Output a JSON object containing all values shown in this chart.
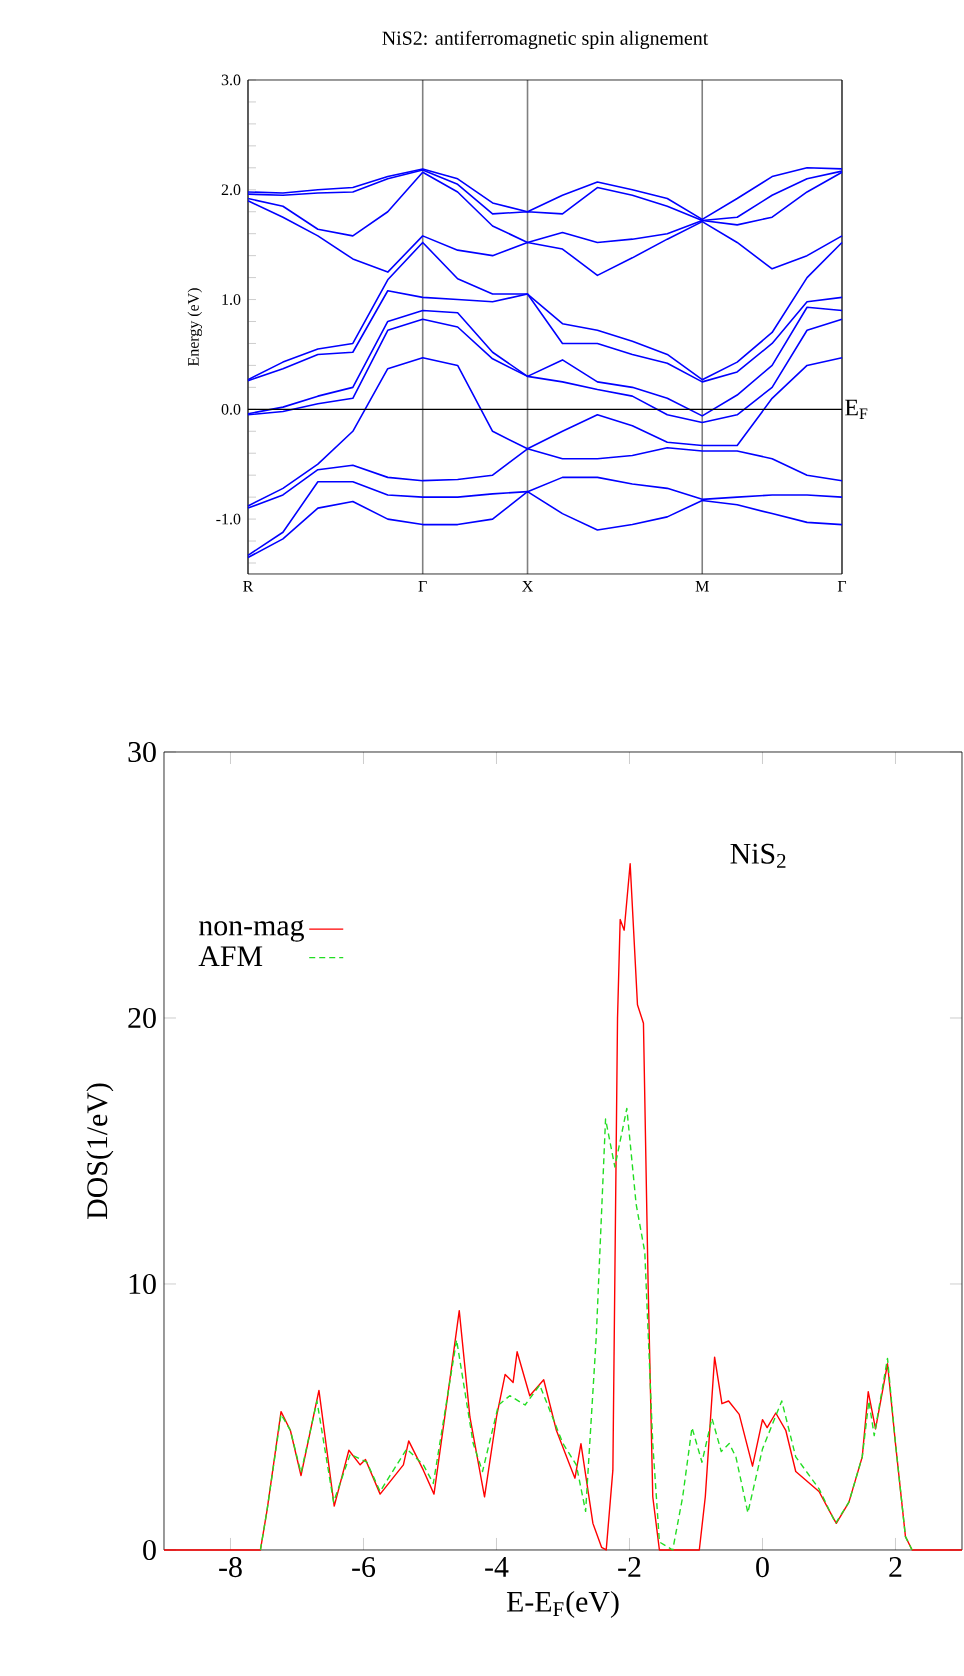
{
  "chart_data": [
    {
      "type": "line",
      "title": "NiS2: antiferromagnetic spin alignement",
      "ylabel": "Energy (eV)",
      "categories": [
        "R",
        null,
        null,
        null,
        null,
        "Γ",
        null,
        null,
        "X",
        null,
        null,
        null,
        null,
        "M",
        null,
        null,
        null,
        "Γ"
      ],
      "ylim": [
        -1.5,
        3.0
      ],
      "grid": "x",
      "yticks": [
        {
          "value": -1.4,
          "label": null
        },
        {
          "value": -1.2,
          "label": null
        },
        {
          "value": -1.0,
          "label": "-1.0"
        },
        {
          "value": -0.8,
          "label": null
        },
        {
          "value": -0.6,
          "label": null
        },
        {
          "value": -0.4,
          "label": null
        },
        {
          "value": -0.2,
          "label": null
        },
        {
          "value": 0,
          "label": "0.0"
        },
        {
          "value": 0.2,
          "label": null
        },
        {
          "value": 0.4,
          "label": null
        },
        {
          "value": 0.6,
          "label": null
        },
        {
          "value": 0.8,
          "label": null
        },
        {
          "value": 1.0,
          "label": "1.0"
        },
        {
          "value": 1.2,
          "label": null
        },
        {
          "value": 1.4,
          "label": null
        },
        {
          "value": 1.6,
          "label": null
        },
        {
          "value": 1.8,
          "label": null
        },
        {
          "value": 2.0,
          "label": "2.0"
        },
        {
          "value": 2.2,
          "label": null
        },
        {
          "value": 2.4,
          "label": null
        },
        {
          "value": 2.6,
          "label": null
        },
        {
          "value": 2.8,
          "label": null
        },
        {
          "value": 3.0,
          "label": "3.0"
        }
      ],
      "ref_lines": [
        {
          "axis": "y",
          "value": 0,
          "label": "E$_{F}$",
          "color": "#000000"
        }
      ],
      "series": [
        {
          "color": "#0000ff",
          "values": [
            -1.35,
            -1.18,
            -0.9,
            -0.84,
            -1.0,
            -1.05,
            -1.05,
            -1.0,
            -0.75,
            -0.95,
            -1.1,
            -1.05,
            -0.98,
            -0.83,
            -0.87,
            -0.95,
            -1.03,
            -1.05
          ]
        },
        {
          "color": "#0000ff",
          "values": [
            -1.33,
            -1.12,
            -0.66,
            -0.66,
            -0.78,
            -0.8,
            -0.8,
            -0.77,
            -0.75,
            -0.62,
            -0.62,
            -0.68,
            -0.72,
            -0.82,
            -0.8,
            -0.78,
            -0.78,
            -0.8
          ]
        },
        {
          "color": "#0000ff",
          "values": [
            -0.9,
            -0.78,
            -0.55,
            -0.51,
            -0.62,
            -0.65,
            -0.64,
            -0.6,
            -0.36,
            -0.45,
            -0.45,
            -0.42,
            -0.35,
            -0.38,
            -0.38,
            -0.45,
            -0.6,
            -0.65
          ]
        },
        {
          "color": "#0000ff",
          "values": [
            -0.88,
            -0.72,
            -0.5,
            -0.2,
            0.37,
            0.47,
            0.4,
            -0.2,
            -0.36,
            -0.2,
            -0.05,
            -0.15,
            -0.3,
            -0.33,
            -0.33,
            0.1,
            0.4,
            0.47
          ]
        },
        {
          "color": "#0000ff",
          "values": [
            -0.05,
            -0.02,
            0.05,
            0.1,
            0.72,
            0.82,
            0.75,
            0.46,
            0.3,
            0.25,
            0.18,
            0.12,
            -0.05,
            -0.12,
            -0.05,
            0.2,
            0.72,
            0.82
          ]
        },
        {
          "color": "#0000ff",
          "values": [
            -0.04,
            0.02,
            0.12,
            0.2,
            0.8,
            0.9,
            0.88,
            0.52,
            0.3,
            0.45,
            0.25,
            0.2,
            0.1,
            -0.06,
            0.13,
            0.4,
            0.93,
            0.9
          ]
        },
        {
          "color": "#0000ff",
          "values": [
            0.26,
            0.37,
            0.5,
            0.52,
            1.08,
            1.02,
            1.0,
            0.98,
            1.05,
            0.6,
            0.6,
            0.5,
            0.42,
            0.25,
            0.34,
            0.6,
            0.98,
            1.02
          ]
        },
        {
          "color": "#0000ff",
          "values": [
            0.27,
            0.43,
            0.55,
            0.6,
            1.18,
            1.52,
            1.19,
            1.05,
            1.05,
            0.78,
            0.72,
            0.62,
            0.5,
            0.27,
            0.43,
            0.7,
            1.2,
            1.52
          ]
        },
        {
          "color": "#0000ff",
          "values": [
            1.9,
            1.75,
            1.58,
            1.37,
            1.25,
            1.58,
            1.45,
            1.4,
            1.52,
            1.46,
            1.22,
            1.38,
            1.55,
            1.71,
            1.52,
            1.28,
            1.4,
            1.58
          ]
        },
        {
          "color": "#0000ff",
          "values": [
            1.92,
            1.85,
            1.64,
            1.58,
            1.8,
            2.16,
            1.98,
            1.67,
            1.52,
            1.61,
            1.52,
            1.55,
            1.6,
            1.72,
            1.68,
            1.75,
            1.98,
            2.16
          ]
        },
        {
          "color": "#0000ff",
          "values": [
            1.96,
            1.95,
            1.97,
            1.98,
            2.1,
            2.18,
            2.05,
            1.78,
            1.8,
            1.78,
            2.02,
            1.95,
            1.85,
            1.72,
            1.75,
            1.95,
            2.1,
            2.17
          ]
        },
        {
          "color": "#0000ff",
          "values": [
            1.98,
            1.97,
            2.0,
            2.02,
            2.12,
            2.19,
            2.1,
            1.88,
            1.8,
            1.95,
            2.07,
            2.0,
            1.92,
            1.73,
            1.92,
            2.12,
            2.2,
            2.19
          ]
        }
      ]
    },
    {
      "type": "line",
      "xlabel": "E-E$_{F}$(eV)",
      "ylabel": "DOS(1/eV)",
      "xlim": [
        -9,
        3
      ],
      "ylim": [
        0,
        30
      ],
      "xticks": [
        -8,
        -6,
        -4,
        -2,
        0,
        2
      ],
      "yticks": [
        0,
        10,
        20,
        30
      ],
      "legend": "top left",
      "annotations": [
        "NiS$_{2}$"
      ],
      "series": [
        {
          "name": "non-mag",
          "color": "#ff0000",
          "line_style": "solid",
          "x": [
            -9,
            -7.55,
            -7.45,
            -7.24,
            -7.1,
            -6.94,
            -6.67,
            -6.44,
            -6.22,
            -6.05,
            -5.97,
            -5.75,
            -5.4,
            -5.32,
            -5.1,
            -4.94,
            -4.75,
            -4.56,
            -4.4,
            -4.18,
            -4.0,
            -3.87,
            -3.75,
            -3.69,
            -3.5,
            -3.29,
            -3.1,
            -2.9,
            -2.82,
            -2.73,
            -2.55,
            -2.42,
            -2.35,
            -2.25,
            -2.18,
            -2.14,
            -2.08,
            -1.99,
            -1.88,
            -1.79,
            -1.72,
            -1.65,
            -1.55,
            -0.95,
            -0.86,
            -0.72,
            -0.61,
            -0.51,
            -0.35,
            -0.15,
            0.0,
            0.07,
            0.2,
            0.35,
            0.5,
            0.85,
            1.0,
            1.11,
            1.3,
            1.5,
            1.59,
            1.7,
            1.88,
            2.0,
            2.15,
            2.25,
            3
          ],
          "values": [
            0,
            0,
            1.5,
            5.2,
            4.5,
            2.8,
            6.0,
            1.65,
            3.75,
            3.2,
            3.4,
            2.1,
            3.2,
            4.1,
            3.0,
            2.1,
            5.5,
            9.0,
            5.0,
            2.0,
            5.0,
            6.6,
            6.3,
            7.45,
            5.8,
            6.4,
            4.5,
            3.2,
            2.7,
            4.0,
            1.0,
            0.1,
            0,
            3,
            20,
            23.7,
            23.3,
            25.8,
            20.5,
            19.8,
            10,
            2,
            0,
            0,
            2,
            7.25,
            5.5,
            5.6,
            5.1,
            3.15,
            4.9,
            4.6,
            5.15,
            4.5,
            2.95,
            2.2,
            1.5,
            1.0,
            1.8,
            3.5,
            5.95,
            4.55,
            7.0,
            4.0,
            0.5,
            0,
            0
          ]
        },
        {
          "name": "AFM",
          "color": "#22dd22",
          "line_style": "dashed",
          "x": [
            -7.55,
            -7.45,
            -7.24,
            -7.1,
            -6.94,
            -6.7,
            -6.45,
            -6.2,
            -5.95,
            -5.75,
            -5.35,
            -5.1,
            -4.95,
            -4.6,
            -4.35,
            -4.21,
            -3.97,
            -3.8,
            -3.57,
            -3.35,
            -3.0,
            -2.8,
            -2.66,
            -2.5,
            -2.36,
            -2.22,
            -2.04,
            -1.9,
            -1.77,
            -1.65,
            -1.55,
            -1.35,
            -1.2,
            -1.06,
            -0.91,
            -0.76,
            -0.62,
            -0.5,
            -0.4,
            -0.22,
            0.0,
            0.29,
            0.5,
            0.85,
            1.1,
            1.3,
            1.5,
            1.6,
            1.68,
            1.88,
            2.0,
            2.15,
            2.25
          ],
          "values": [
            0,
            1.5,
            5.1,
            4.5,
            2.9,
            5.6,
            1.8,
            3.6,
            3.3,
            2.2,
            3.8,
            3.2,
            2.5,
            7.9,
            4.0,
            2.95,
            5.45,
            5.8,
            5.45,
            6.2,
            4.0,
            3.2,
            1.45,
            8,
            16.2,
            14.4,
            16.6,
            13,
            11.2,
            4,
            0.3,
            0,
            2,
            4.6,
            3.3,
            4.95,
            3.7,
            4.0,
            3.5,
            1.4,
            3.8,
            5.6,
            3.5,
            2.3,
            1.0,
            1.8,
            3.5,
            5.6,
            4.3,
            7.2,
            4.0,
            0.5,
            0
          ]
        }
      ]
    }
  ]
}
